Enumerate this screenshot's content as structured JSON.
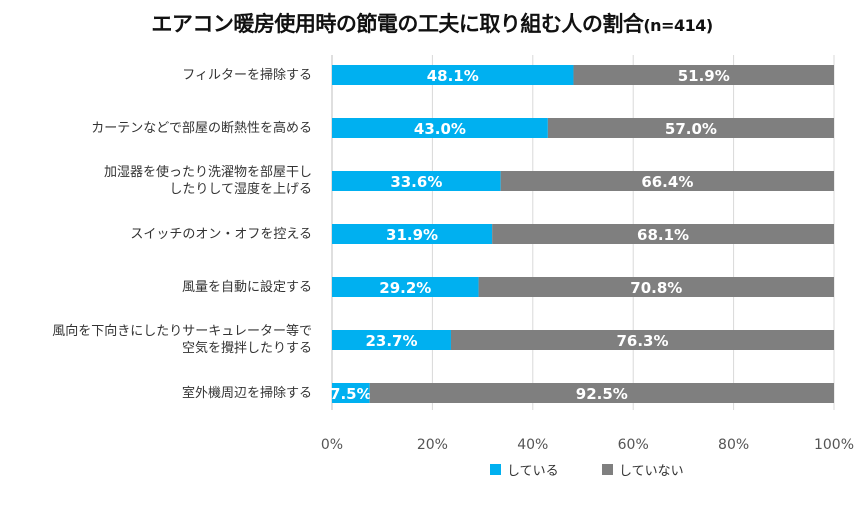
{
  "chart_data": {
    "type": "bar",
    "stacked": true,
    "orientation": "horizontal",
    "title": "エアコン暖房使用時の節電の工夫に取り組む人の割合",
    "title_suffix": "(n=414)",
    "categories": [
      [
        "フィルターを掃除する"
      ],
      [
        "カーテンなどで部屋の断熱性を高める"
      ],
      [
        "加湿器を使ったり洗濯物を部屋干し",
        "したりして湿度を上げる"
      ],
      [
        "スイッチのオン・オフを控える"
      ],
      [
        "風量を自動に設定する"
      ],
      [
        "風向を下向きにしたりサーキュレーター等で",
        "空気を攪拌したりする"
      ],
      [
        "室外機周辺を掃除する"
      ]
    ],
    "series": [
      {
        "name": "している",
        "color": "#00B0F0",
        "values": [
          48.1,
          43.0,
          33.6,
          31.9,
          29.2,
          23.7,
          7.5
        ],
        "labels": [
          "48.1%",
          "43.0%",
          "33.6%",
          "31.9%",
          "29.2%",
          "23.7%",
          "7.5%"
        ]
      },
      {
        "name": "していない",
        "color": "#7F7F7F",
        "values": [
          51.9,
          57.0,
          66.4,
          68.1,
          70.8,
          76.3,
          92.5
        ],
        "labels": [
          "51.9%",
          "57.0%",
          "66.4%",
          "68.1%",
          "70.8%",
          "76.3%",
          "92.5%"
        ]
      }
    ],
    "xlim": [
      0,
      100
    ],
    "xticks": [
      "0%",
      "20%",
      "40%",
      "60%",
      "80%",
      "100%"
    ],
    "grid": true,
    "legend_position": "bottom"
  }
}
